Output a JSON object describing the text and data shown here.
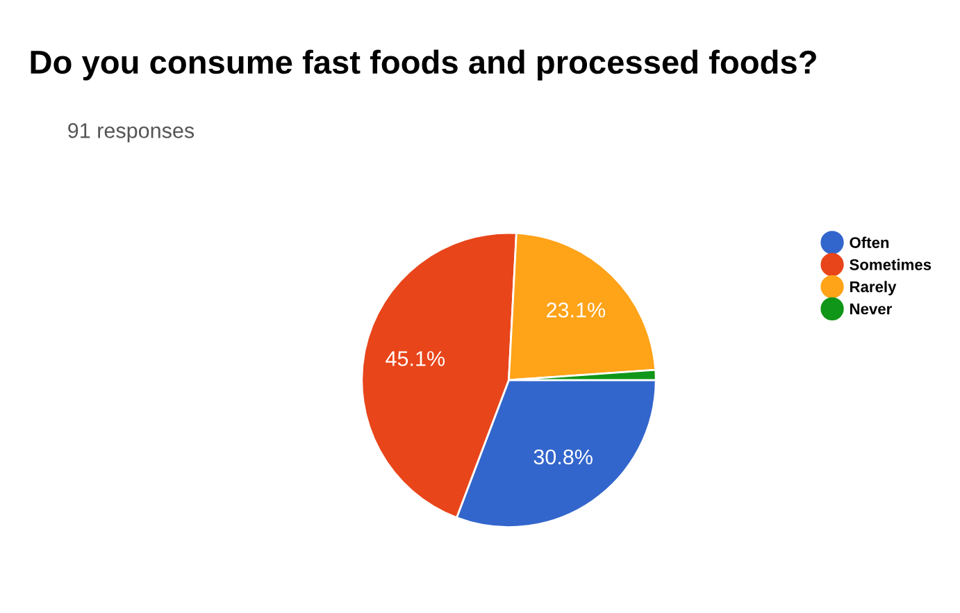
{
  "chart_data": {
    "type": "pie",
    "title": "Do you consume fast foods and processed foods?",
    "subtitle": "91 responses",
    "categories": [
      "Often",
      "Sometimes",
      "Rarely",
      "Never"
    ],
    "values": [
      30.8,
      45.1,
      23.1,
      1.1
    ],
    "colors": [
      "#3366cc",
      "#e8451a",
      "#ffa319",
      "#109618"
    ],
    "value_labels": [
      "30.8%",
      "45.1%",
      "23.1%",
      null
    ],
    "legend": "right"
  }
}
